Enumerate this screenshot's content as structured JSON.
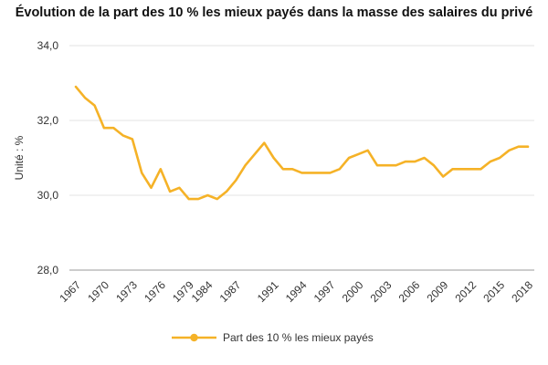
{
  "chart_data": {
    "type": "line",
    "title": "Évolution de la part des 10 % les mieux payés dans la masse des salaires du privé",
    "xlabel": "",
    "ylabel": "Unité : %",
    "ylim": [
      28,
      34
    ],
    "yticks": [
      "28,0",
      "30,0",
      "32,0",
      "34,0"
    ],
    "xticks": [
      "1967",
      "1970",
      "1973",
      "1976",
      "1979",
      "1984",
      "1987",
      "1991",
      "1994",
      "1997",
      "2000",
      "2003",
      "2006",
      "2009",
      "2012",
      "2015",
      "2018"
    ],
    "grid": "horizontal",
    "legend_position": "bottom",
    "series_color": "#F5B227",
    "series": [
      {
        "name": "Part des 10 % les mieux payés",
        "x": [
          "1967",
          "1968",
          "1969",
          "1970",
          "1971",
          "1972",
          "1973",
          "1974",
          "1975",
          "1976",
          "1977",
          "1978",
          "1979",
          "1980",
          "1984",
          "1985",
          "1986",
          "1987",
          "1988",
          "1989",
          "1990",
          "1991",
          "1992",
          "1993",
          "1994",
          "1995",
          "1996",
          "1997",
          "1998",
          "1999",
          "2000",
          "2001",
          "2002",
          "2003",
          "2004",
          "2005",
          "2006",
          "2007",
          "2008",
          "2009",
          "2010",
          "2011",
          "2012",
          "2013",
          "2014",
          "2015",
          "2016",
          "2017",
          "2018"
        ],
        "values": [
          32.9,
          32.6,
          32.4,
          31.8,
          31.8,
          31.6,
          31.5,
          30.6,
          30.2,
          30.7,
          30.1,
          30.2,
          29.9,
          29.9,
          30.0,
          29.9,
          30.1,
          30.4,
          30.8,
          31.1,
          31.4,
          31.0,
          30.7,
          30.7,
          30.6,
          30.6,
          30.6,
          30.6,
          30.7,
          31.0,
          31.1,
          31.2,
          30.8,
          30.8,
          30.8,
          30.9,
          30.9,
          31.0,
          30.8,
          30.5,
          30.7,
          30.7,
          30.7,
          30.7,
          30.9,
          31.0,
          31.2,
          31.3,
          31.3
        ]
      }
    ]
  }
}
